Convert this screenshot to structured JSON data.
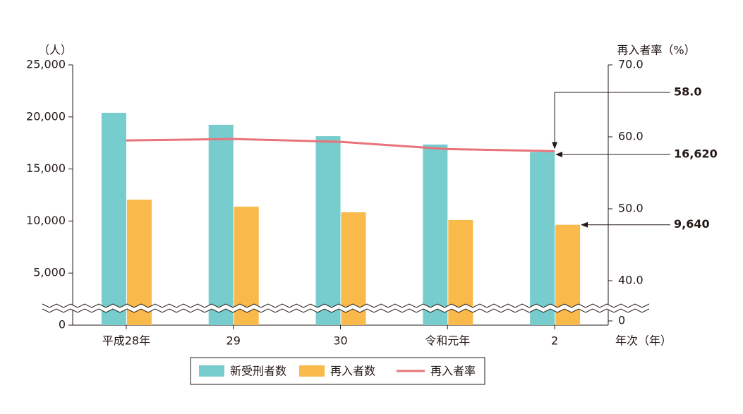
{
  "chart_data": {
    "type": "bar",
    "categories": [
      "平成28年",
      "29",
      "30",
      "令和元年",
      "2"
    ],
    "series": [
      {
        "name": "新受刑者数",
        "type": "bar",
        "color": "#77cccd",
        "values": [
          20400,
          19250,
          18150,
          17350,
          16620
        ],
        "value_labels": [
          null,
          null,
          null,
          null,
          "16,620"
        ]
      },
      {
        "name": "再入者数",
        "type": "bar",
        "color": "#f9b94b",
        "values": [
          12050,
          11380,
          10840,
          10100,
          9640
        ],
        "value_labels": [
          null,
          null,
          null,
          null,
          "9,640"
        ]
      },
      {
        "name": "再入者率",
        "type": "line",
        "axis": "y2",
        "color": "#e8737a",
        "values": [
          59.5,
          59.7,
          59.3,
          58.3,
          58.0
        ],
        "value_labels": [
          null,
          null,
          null,
          null,
          "58.0"
        ]
      }
    ],
    "ylabel": "（人）",
    "y2label": "再入者率（%）",
    "xlabel": "年次（年）",
    "ylim": [
      0,
      25000
    ],
    "yticks": [
      0,
      {
        "value": 5000,
        "label": "5,000"
      },
      {
        "value": 10000,
        "label": "10,000"
      },
      {
        "value": 15000,
        "label": "15,000"
      },
      {
        "value": 20000,
        "label": "20,000"
      },
      {
        "value": 25000,
        "label": "25,000"
      }
    ],
    "y2lim": [
      0,
      70
    ],
    "y2ticks": [
      0,
      {
        "value": 40,
        "label": "40.0"
      },
      {
        "value": 50,
        "label": "50.0"
      },
      {
        "value": 60,
        "label": "60.0"
      },
      {
        "value": 70,
        "label": "70.0"
      }
    ],
    "axis_break": true,
    "legend": "bottom"
  }
}
